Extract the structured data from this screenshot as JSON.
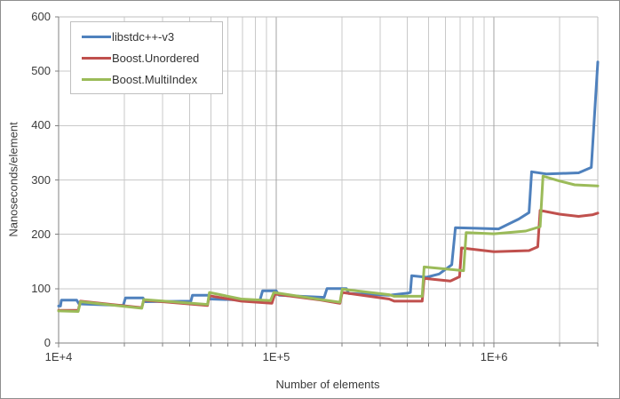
{
  "chart_data": {
    "type": "line",
    "title": "",
    "xlabel": "Number of elements",
    "ylabel": "Nanoseconds/element",
    "x_scale": "log",
    "xlim": [
      10000,
      3000000
    ],
    "ylim": [
      0,
      600
    ],
    "grid": "both",
    "legend_position": "top-left",
    "y_ticks": [
      0,
      100,
      200,
      300,
      400,
      500,
      600
    ],
    "x_tick_labels": [
      {
        "value": 10000,
        "label": "1E+4"
      },
      {
        "value": 100000,
        "label": "1E+5"
      },
      {
        "value": 1000000,
        "label": "1E+6"
      }
    ],
    "axis_color": "#808080",
    "minor_grid_color": "#c9c9c9",
    "major_grid_color": "#a3a3a3",
    "plot_border_color": "#bfbfbf",
    "series": [
      {
        "name": "libstdc++-v3",
        "color": "#4F81BD",
        "points": [
          [
            10000,
            68
          ],
          [
            10200,
            68
          ],
          [
            10300,
            79
          ],
          [
            12100,
            79
          ],
          [
            12400,
            72
          ],
          [
            19800,
            69
          ],
          [
            20300,
            83
          ],
          [
            24400,
            83
          ],
          [
            25000,
            76
          ],
          [
            40500,
            77
          ],
          [
            41200,
            88
          ],
          [
            48500,
            88
          ],
          [
            49800,
            81
          ],
          [
            84000,
            78
          ],
          [
            86500,
            96
          ],
          [
            100000,
            96
          ],
          [
            103000,
            88
          ],
          [
            166000,
            84
          ],
          [
            171000,
            100
          ],
          [
            210000,
            100
          ],
          [
            215000,
            91
          ],
          [
            330000,
            88
          ],
          [
            405000,
            92
          ],
          [
            413000,
            93
          ],
          [
            419000,
            124
          ],
          [
            490000,
            121
          ],
          [
            560000,
            127
          ],
          [
            640000,
            144
          ],
          [
            665000,
            212
          ],
          [
            830000,
            211
          ],
          [
            1050000,
            210
          ],
          [
            1300000,
            228
          ],
          [
            1450000,
            240
          ],
          [
            1490000,
            315
          ],
          [
            1750000,
            311
          ],
          [
            2450000,
            313
          ],
          [
            2800000,
            323
          ],
          [
            3000000,
            517
          ]
        ]
      },
      {
        "name": "Boost.Unordered",
        "color": "#C0504D",
        "points": [
          [
            10000,
            60
          ],
          [
            12300,
            60
          ],
          [
            12600,
            77
          ],
          [
            24100,
            65
          ],
          [
            24600,
            79
          ],
          [
            48300,
            69
          ],
          [
            49300,
            87
          ],
          [
            69000,
            77
          ],
          [
            95500,
            73
          ],
          [
            98500,
            90
          ],
          [
            160000,
            79
          ],
          [
            196000,
            73
          ],
          [
            201000,
            93
          ],
          [
            330000,
            81
          ],
          [
            348000,
            77
          ],
          [
            468000,
            77
          ],
          [
            478000,
            119
          ],
          [
            630000,
            114
          ],
          [
            695000,
            122
          ],
          [
            710000,
            175
          ],
          [
            1000000,
            168
          ],
          [
            1450000,
            170
          ],
          [
            1590000,
            177
          ],
          [
            1630000,
            244
          ],
          [
            2000000,
            237
          ],
          [
            2450000,
            233
          ],
          [
            2850000,
            236
          ],
          [
            3000000,
            239
          ]
        ]
      },
      {
        "name": "Boost.MultiIndex",
        "color": "#9BBB59",
        "points": [
          [
            10000,
            59
          ],
          [
            12300,
            58
          ],
          [
            12600,
            76
          ],
          [
            24100,
            64
          ],
          [
            24600,
            80
          ],
          [
            48300,
            71
          ],
          [
            49300,
            93
          ],
          [
            69000,
            81
          ],
          [
            94000,
            78
          ],
          [
            97500,
            93
          ],
          [
            160000,
            80
          ],
          [
            196000,
            75
          ],
          [
            201000,
            99
          ],
          [
            330000,
            89
          ],
          [
            348000,
            86
          ],
          [
            468000,
            86
          ],
          [
            478000,
            140
          ],
          [
            725000,
            133
          ],
          [
            745000,
            203
          ],
          [
            1000000,
            201
          ],
          [
            1400000,
            206
          ],
          [
            1630000,
            214
          ],
          [
            1680000,
            307
          ],
          [
            2000000,
            298
          ],
          [
            2350000,
            291
          ],
          [
            3000000,
            289
          ]
        ]
      }
    ]
  }
}
